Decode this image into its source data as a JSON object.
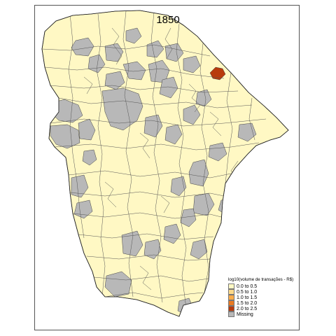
{
  "map": {
    "title": "1850",
    "colors": {
      "background": "#ffffff",
      "border": "#555555",
      "default_fill": "#fff8c4",
      "missing_fill": "#b8b8b8",
      "highlight_fill": "#b83a0c"
    }
  },
  "legend": {
    "title": "log10(volume de transações - R$)",
    "items": [
      {
        "label": "0.0 to 0.5",
        "color": "#fff8c4"
      },
      {
        "label": "0.5 to 1.0",
        "color": "#fdd98a"
      },
      {
        "label": "1.0 to 1.5",
        "color": "#fcac4a"
      },
      {
        "label": "1.5 to 2.0",
        "color": "#ea7a22"
      },
      {
        "label": "2.0 to 2.5",
        "color": "#b83a0c"
      },
      {
        "label": "Missing",
        "color": "#b8b8b8"
      }
    ]
  }
}
